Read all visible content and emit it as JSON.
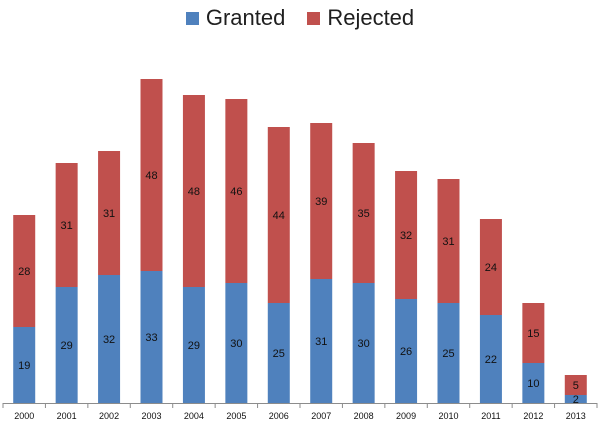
{
  "chart_data": {
    "type": "bar",
    "stacked": true,
    "title": "",
    "xlabel": "",
    "ylabel": "",
    "categories": [
      "2000",
      "2001",
      "2002",
      "2003",
      "2004",
      "2005",
      "2006",
      "2007",
      "2008",
      "2009",
      "2010",
      "2011",
      "2012",
      "2013"
    ],
    "series": [
      {
        "name": "Granted",
        "color": "#4f81bd",
        "values": [
          19,
          29,
          32,
          33,
          29,
          30,
          25,
          31,
          30,
          26,
          25,
          22,
          10,
          2
        ]
      },
      {
        "name": "Rejected",
        "color": "#c0504d",
        "values": [
          28,
          31,
          31,
          48,
          48,
          46,
          44,
          39,
          35,
          32,
          31,
          24,
          15,
          5
        ]
      }
    ],
    "ylim": [
      0,
      82
    ],
    "grid": false,
    "legend_position": "top-center",
    "data_labels": true
  }
}
